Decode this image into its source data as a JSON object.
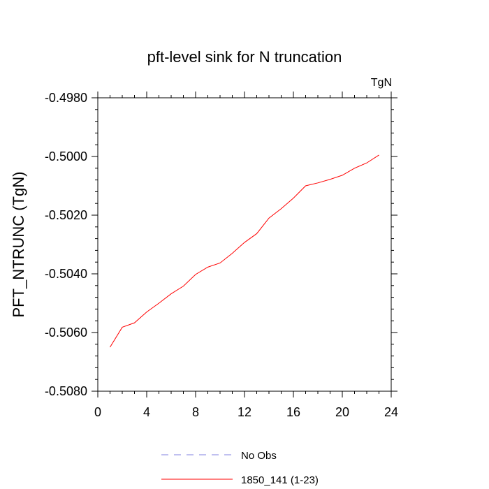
{
  "chart_data": {
    "type": "line",
    "title": "pft-level sink for N truncation",
    "units_label": "TgN",
    "ylabel": "PFT_NTRUNC  (TgN)",
    "xlabel": "",
    "xlim": [
      0,
      24
    ],
    "ylim": [
      -0.508,
      -0.498
    ],
    "x_ticks": [
      0,
      4,
      8,
      12,
      16,
      20,
      24
    ],
    "x_tick_labels": [
      "0",
      "4",
      "8",
      "12",
      "16",
      "20",
      "24"
    ],
    "y_ticks": [
      -0.508,
      -0.506,
      -0.504,
      -0.502,
      -0.5,
      -0.498
    ],
    "y_tick_labels": [
      "-0.5080",
      "-0.5060",
      "-0.5040",
      "-0.5020",
      "-0.5000",
      "-0.4980"
    ],
    "grid": false,
    "legend_position": "bottom",
    "series": [
      {
        "name": "No Obs",
        "color": "#8080e0",
        "dashed": true,
        "x": [],
        "values": []
      },
      {
        "name": "1850_141 (1-23)",
        "color": "#ff0000",
        "dashed": false,
        "x": [
          1,
          2,
          3,
          4,
          5,
          6,
          7,
          8,
          9,
          10,
          11,
          12,
          13,
          14,
          15,
          16,
          17,
          18,
          19,
          20,
          21,
          22,
          23
        ],
        "values": [
          -0.5065,
          -0.50582,
          -0.50567,
          -0.5053,
          -0.505,
          -0.50468,
          -0.50442,
          -0.50402,
          -0.50377,
          -0.50363,
          -0.5033,
          -0.50293,
          -0.50263,
          -0.5021,
          -0.50178,
          -0.50142,
          -0.501,
          -0.5009,
          -0.50078,
          -0.50064,
          -0.5004,
          -0.50022,
          -0.49995
        ]
      }
    ]
  }
}
